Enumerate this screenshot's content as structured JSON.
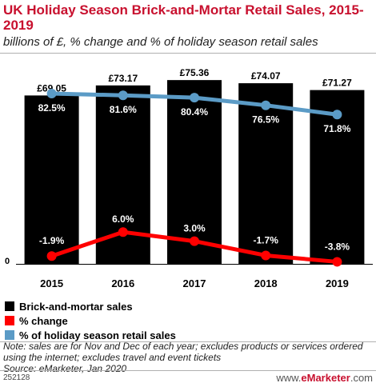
{
  "header": {
    "title": "UK Holiday Season Brick-and-Mortar Retail Sales, 2015-2019",
    "subtitle": "billions of £, % change and % of holiday season retail sales"
  },
  "legend": [
    {
      "label": "Brick-and-mortar sales",
      "color": "#000000"
    },
    {
      "label": "% change",
      "color": "#ff0000"
    },
    {
      "label": "% of holiday season retail sales",
      "color": "#5b9bc6"
    }
  ],
  "note": {
    "line1": "Note: sales are for Nov and Dec of each year; excludes products or services ordered using the internet; excludes travel and event tickets",
    "line2": "Source: eMarketer, Jan 2020"
  },
  "footer": {
    "code": "252128",
    "logo_prefix": "www.",
    "logo_brand": "eMarketer",
    "logo_suffix": ".com"
  },
  "chart_data": {
    "type": "bar",
    "categories": [
      "2015",
      "2016",
      "2017",
      "2018",
      "2019"
    ],
    "series": [
      {
        "name": "Brick-and-mortar sales",
        "type": "bar",
        "values": [
          69.05,
          73.17,
          75.36,
          74.07,
          71.27
        ],
        "labels": [
          "£69.05",
          "£73.17",
          "£75.36",
          "£74.07",
          "£71.27"
        ],
        "color": "#000000"
      },
      {
        "name": "% of holiday season retail sales",
        "type": "line",
        "values": [
          82.5,
          81.6,
          80.4,
          76.5,
          71.8
        ],
        "labels": [
          "82.5%",
          "81.6%",
          "80.4%",
          "76.5%",
          "71.8%"
        ],
        "color": "#5b9bc6"
      },
      {
        "name": "% change",
        "type": "line",
        "values": [
          -1.9,
          6.0,
          3.0,
          -1.7,
          -3.8
        ],
        "labels": [
          "-1.9%",
          "6.0%",
          "3.0%",
          "-1.7%",
          "-3.8%"
        ],
        "color": "#ff0000"
      }
    ],
    "y_baseline_label": "0",
    "ylim": [
      0,
      80
    ]
  }
}
